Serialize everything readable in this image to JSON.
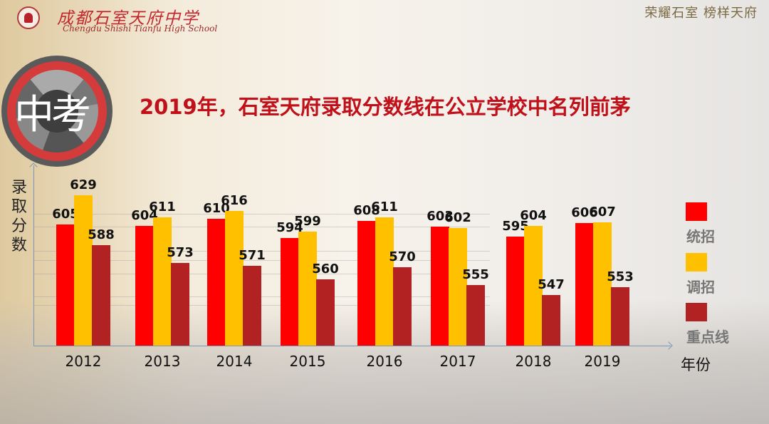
{
  "header": {
    "school_name_cn": "成都石室天府中学",
    "school_name_en": "Chengdu Shishi Tianfu High School",
    "motto": "荣耀石室 榜样天府"
  },
  "badge": {
    "text": "中考"
  },
  "title": "2019年，石室天府录取分数线在公立学校中名列前茅",
  "colors": {
    "tongzhao": "#ff0000",
    "tiaozhao": "#ffc000",
    "zhongdian": "#b22222",
    "title": "#c0101a"
  },
  "chart_data": {
    "type": "bar",
    "title": "2019年，石室天府录取分数线在公立学校中名列前茅",
    "xlabel": "年份",
    "ylabel": "录取分数",
    "categories": [
      "2012",
      "2013",
      "2014",
      "2015",
      "2016",
      "2017",
      "2018",
      "2019"
    ],
    "series": [
      {
        "name": "统招",
        "color": "#ff0000",
        "values": [
          605,
          604,
          610,
          594,
          608,
          603,
          595,
          606
        ]
      },
      {
        "name": "调招",
        "color": "#ffc000",
        "values": [
          629,
          611,
          616,
          599,
          611,
          602,
          604,
          607
        ]
      },
      {
        "name": "重点线",
        "color": "#b22222",
        "values": [
          588,
          573,
          571,
          560,
          570,
          555,
          547,
          553
        ]
      }
    ],
    "legend_position": "right",
    "grid": true,
    "data_labels": true
  }
}
